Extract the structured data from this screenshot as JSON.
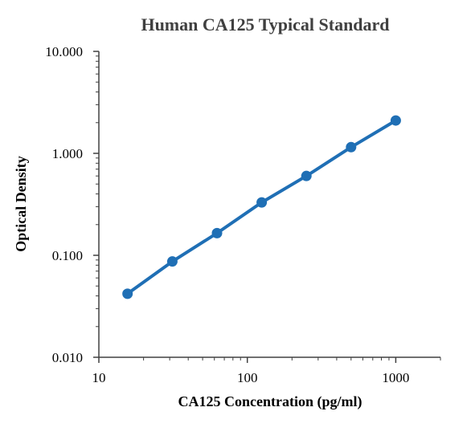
{
  "chart_data": {
    "type": "line",
    "title": "Human CA125 Typical Standard",
    "xlabel": "CA125 Concentration (pg/ml)",
    "ylabel": "Optical Density",
    "x_scale": "log",
    "y_scale": "log",
    "xlim": [
      10,
      2000
    ],
    "ylim": [
      0.01,
      10
    ],
    "x_ticks": [
      "10",
      "100",
      "1000"
    ],
    "y_ticks": [
      "0.010",
      "0.100",
      "1.000",
      "10.000"
    ],
    "grid": false,
    "legend": "none",
    "series": [
      {
        "x": [
          15.6,
          31.25,
          62.5,
          125,
          250,
          500,
          1000
        ],
        "y": [
          0.042,
          0.087,
          0.165,
          0.33,
          0.6,
          1.15,
          2.1
        ]
      }
    ],
    "colors": {
      "series": "#1f6fb5",
      "axis": "#404040",
      "title": "#404040"
    }
  }
}
